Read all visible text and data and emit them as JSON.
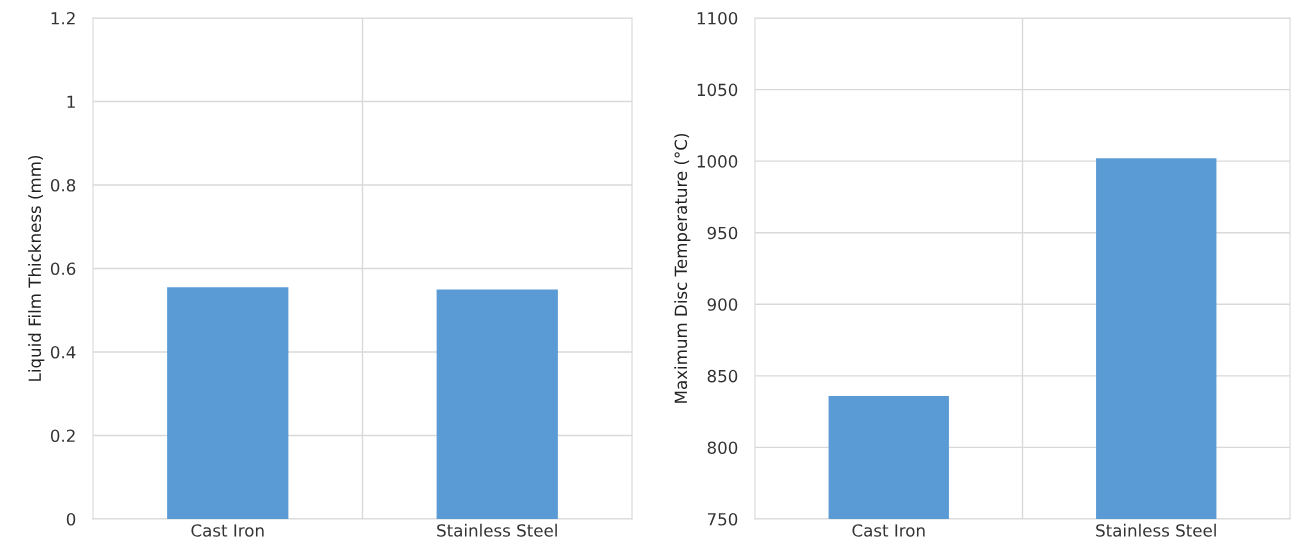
{
  "chart_data": [
    {
      "type": "bar",
      "categories": [
        "Cast Iron",
        "Stainless Steel"
      ],
      "values": [
        0.555,
        0.55
      ],
      "color": "#5b9bd5",
      "ylabel": "Liquid Film Thickness (mm)",
      "ylim": [
        0,
        1.2
      ],
      "yticks": [
        0,
        0.2,
        0.4,
        0.6,
        0.8,
        1,
        1.2
      ],
      "grid": true
    },
    {
      "type": "bar",
      "categories": [
        "Cast Iron",
        "Stainless Steel"
      ],
      "values": [
        836,
        1002
      ],
      "color": "#5b9bd5",
      "ylabel": "Maximum Disc Temperature (°C)",
      "ylim": [
        750,
        1100
      ],
      "yticks": [
        750,
        800,
        850,
        900,
        950,
        1000,
        1050,
        1100
      ],
      "grid": true
    }
  ]
}
